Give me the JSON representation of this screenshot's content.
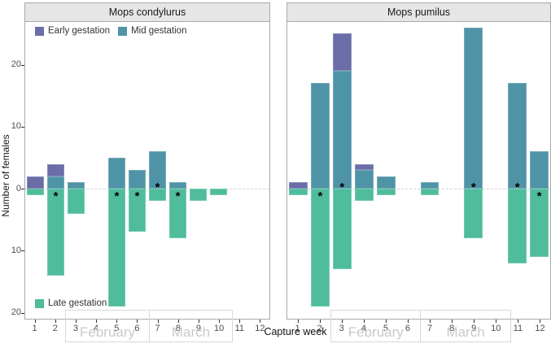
{
  "chart_data": {
    "type": "bar",
    "stacked": true,
    "orientation": "diverging",
    "xlabel": "Capture week",
    "ylabel": "Number of females",
    "y_ticks": [
      20,
      10,
      0,
      -10,
      -20
    ],
    "y_tick_labels": [
      "20",
      "10",
      "0",
      "10",
      "20"
    ],
    "ylim": [
      -21.1,
      26.9
    ],
    "grid": "off",
    "zero_line": "dashed",
    "weeks": [
      "1",
      "2",
      "3",
      "4",
      "5",
      "6",
      "7",
      "8",
      "9",
      "10",
      "11",
      "12"
    ],
    "months": [
      {
        "label": "February",
        "start_week": 3,
        "end_week": 6
      },
      {
        "label": "March",
        "start_week": 7,
        "end_week": 10
      }
    ],
    "legend": [
      {
        "name": "Early gestation",
        "color": "#6a6da7",
        "position": "top-left"
      },
      {
        "name": "Mid gestation",
        "color": "#4f93a6",
        "position": "top-left"
      },
      {
        "name": "Late gestation",
        "color": "#4fbc9c",
        "position": "bottom-left"
      }
    ],
    "significance_marker": "*",
    "facets": [
      {
        "title": "Mops condylurus",
        "bars": [
          {
            "week": "1",
            "early": 2,
            "mid": 0,
            "late": -1,
            "sig": null
          },
          {
            "week": "2",
            "early": 2,
            "mid": 2,
            "late": -14,
            "sig": "below"
          },
          {
            "week": "3",
            "early": 0,
            "mid": 1,
            "late": -4,
            "sig": null
          },
          {
            "week": "4",
            "early": 0,
            "mid": 0,
            "late": 0,
            "sig": null
          },
          {
            "week": "5",
            "early": 0,
            "mid": 5,
            "late": -19,
            "sig": "below"
          },
          {
            "week": "6",
            "early": 0,
            "mid": 3,
            "late": -7,
            "sig": "below"
          },
          {
            "week": "7",
            "early": 0,
            "mid": 6,
            "late": -2,
            "sig": "above"
          },
          {
            "week": "8",
            "early": 0,
            "mid": 1,
            "late": -8,
            "sig": "below"
          },
          {
            "week": "9",
            "early": 0,
            "mid": 0,
            "late": -2,
            "sig": null
          },
          {
            "week": "10",
            "early": 0,
            "mid": 0,
            "late": -1,
            "sig": null
          },
          {
            "week": "11",
            "early": 0,
            "mid": 0,
            "late": 0,
            "sig": null
          },
          {
            "week": "12",
            "early": 0,
            "mid": 0,
            "late": 0,
            "sig": null
          }
        ]
      },
      {
        "title": "Mops pumilus",
        "bars": [
          {
            "week": "1",
            "early": 1,
            "mid": 0,
            "late": -1,
            "sig": null
          },
          {
            "week": "2",
            "early": 0,
            "mid": 17,
            "late": -19,
            "sig": "below"
          },
          {
            "week": "3",
            "early": 6,
            "mid": 19,
            "late": -13,
            "sig": "above"
          },
          {
            "week": "4",
            "early": 1,
            "mid": 3,
            "late": -2,
            "sig": null
          },
          {
            "week": "5",
            "early": 0,
            "mid": 2,
            "late": -1,
            "sig": null
          },
          {
            "week": "6",
            "early": 0,
            "mid": 0,
            "late": 0,
            "sig": null
          },
          {
            "week": "7",
            "early": 0,
            "mid": 1,
            "late": -1,
            "sig": null
          },
          {
            "week": "8",
            "early": 0,
            "mid": 0,
            "late": 0,
            "sig": null
          },
          {
            "week": "9",
            "early": 0,
            "mid": 26,
            "late": -8,
            "sig": "above"
          },
          {
            "week": "10",
            "early": 0,
            "mid": 0,
            "late": 0,
            "sig": null
          },
          {
            "week": "11",
            "early": 0,
            "mid": 17,
            "late": -12,
            "sig": "above"
          },
          {
            "week": "12",
            "early": 0,
            "mid": 6,
            "late": -11,
            "sig": "below"
          }
        ]
      }
    ],
    "colors": {
      "early": "#6a6da7",
      "mid": "#4f93a6",
      "late": "#4fbc9c",
      "zero_line": "#d0d0d0",
      "month_box_border": "#d8d8d8",
      "month_text": "#c9c9c9",
      "strip_bg": "#e6e6e6",
      "panel_border": "#a9a9a9",
      "axis_text": "#4d4d4d"
    }
  }
}
